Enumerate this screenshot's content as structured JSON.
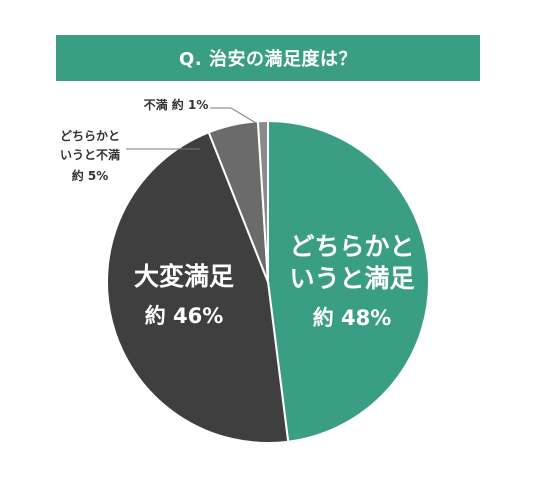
{
  "chart_data": {
    "type": "pie",
    "title": "Q. 治安の満足度は？",
    "slices": [
      {
        "label_lines": [
          "どちらかと",
          "いうと満足"
        ],
        "value_label": "約 48%",
        "value": 48,
        "color": "#3a9e84",
        "label_color": "#ffffff"
      },
      {
        "label_lines": [
          "大変満足"
        ],
        "value_label": "約 46%",
        "value": 46,
        "color": "#3f3f3f",
        "label_color": "#ffffff"
      },
      {
        "label_lines": [
          "どちらかと",
          "いうと不満"
        ],
        "value_label": "約 5%",
        "value": 5,
        "color": "#6b6b6b",
        "label_color": "#333333"
      },
      {
        "label_lines": [
          "不満"
        ],
        "value_label": "約 1%",
        "value": 1,
        "color": "#8a8a8a",
        "label_color": "#333333"
      }
    ]
  }
}
